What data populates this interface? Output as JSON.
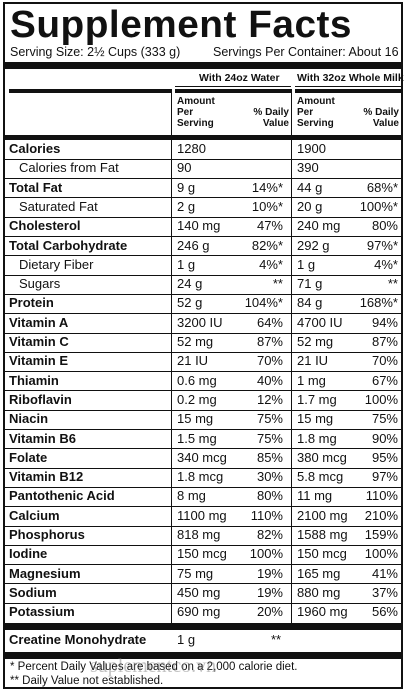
{
  "title": "Supplement Facts",
  "serving_size": "Serving Size: 2½ Cups (333 g)",
  "servings_per_container": "Servings Per Container: About 16",
  "columns": {
    "col1_header": "With 24oz Water",
    "col2_header": "With 32oz Whole Milk",
    "amount_label": "Amount Per Serving",
    "dv_label": "% Daily Value"
  },
  "rows": [
    {
      "label": "Calories",
      "indent": false,
      "a1": "1280",
      "p1": "",
      "a2": "1900",
      "p2": ""
    },
    {
      "label": "Calories from Fat",
      "indent": true,
      "a1": "90",
      "p1": "",
      "a2": "390",
      "p2": ""
    },
    {
      "label": "Total Fat",
      "indent": false,
      "a1": "9 g",
      "p1": "14%*",
      "a2": "44 g",
      "p2": "68%*"
    },
    {
      "label": "Saturated Fat",
      "indent": true,
      "a1": "2 g",
      "p1": "10%*",
      "a2": "20 g",
      "p2": "100%*"
    },
    {
      "label": "Cholesterol",
      "indent": false,
      "a1": "140 mg",
      "p1": "47%",
      "a2": "240 mg",
      "p2": "80%"
    },
    {
      "label": "Total Carbohydrate",
      "indent": false,
      "a1": "246 g",
      "p1": "82%*",
      "a2": "292 g",
      "p2": "97%*"
    },
    {
      "label": "Dietary Fiber",
      "indent": true,
      "a1": "1 g",
      "p1": "4%*",
      "a2": "1 g",
      "p2": "4%*"
    },
    {
      "label": "Sugars",
      "indent": true,
      "a1": "24 g",
      "p1": "**",
      "a2": "71 g",
      "p2": "**"
    },
    {
      "label": "Protein",
      "indent": false,
      "a1": "52 g",
      "p1": "104%*",
      "a2": "84 g",
      "p2": "168%*"
    },
    {
      "label": "Vitamin A",
      "indent": false,
      "a1": "3200 IU",
      "p1": "64%",
      "a2": "4700 IU",
      "p2": "94%"
    },
    {
      "label": "Vitamin C",
      "indent": false,
      "a1": "52 mg",
      "p1": "87%",
      "a2": "52 mg",
      "p2": "87%"
    },
    {
      "label": "Vitamin E",
      "indent": false,
      "a1": "21 IU",
      "p1": "70%",
      "a2": "21 IU",
      "p2": "70%"
    },
    {
      "label": "Thiamin",
      "indent": false,
      "a1": "0.6 mg",
      "p1": "40%",
      "a2": "1 mg",
      "p2": "67%"
    },
    {
      "label": "Riboflavin",
      "indent": false,
      "a1": "0.2 mg",
      "p1": "12%",
      "a2": "1.7 mg",
      "p2": "100%"
    },
    {
      "label": "Niacin",
      "indent": false,
      "a1": "15 mg",
      "p1": "75%",
      "a2": "15 mg",
      "p2": "75%"
    },
    {
      "label": "Vitamin B6",
      "indent": false,
      "a1": "1.5 mg",
      "p1": "75%",
      "a2": "1.8 mg",
      "p2": "90%"
    },
    {
      "label": "Folate",
      "indent": false,
      "a1": "340 mcg",
      "p1": "85%",
      "a2": "380 mcg",
      "p2": "95%"
    },
    {
      "label": "Vitamin B12",
      "indent": false,
      "a1": "1.8 mcg",
      "p1": "30%",
      "a2": "5.8 mcg",
      "p2": "97%"
    },
    {
      "label": "Pantothenic Acid",
      "indent": false,
      "a1": "8 mg",
      "p1": "80%",
      "a2": "11 mg",
      "p2": "110%"
    },
    {
      "label": "Calcium",
      "indent": false,
      "a1": "1100 mg",
      "p1": "110%",
      "a2": "2100 mg",
      "p2": "210%"
    },
    {
      "label": "Phosphorus",
      "indent": false,
      "a1": "818 mg",
      "p1": "82%",
      "a2": "1588 mg",
      "p2": "159%"
    },
    {
      "label": "Iodine",
      "indent": false,
      "a1": "150 mcg",
      "p1": "100%",
      "a2": "150 mcg",
      "p2": "100%"
    },
    {
      "label": "Magnesium",
      "indent": false,
      "a1": "75 mg",
      "p1": "19%",
      "a2": "165 mg",
      "p2": "41%"
    },
    {
      "label": "Sodium",
      "indent": false,
      "a1": "450 mg",
      "p1": "19%",
      "a2": "880 mg",
      "p2": "37%"
    },
    {
      "label": "Potassium",
      "indent": false,
      "a1": "690 mg",
      "p1": "20%",
      "a2": "1960 mg",
      "p2": "56%"
    }
  ],
  "creatine": {
    "label": "Creatine Monohydrate",
    "a1": "1 g",
    "p1": "**"
  },
  "footnotes": [
    "* Percent Daily Values are based on a 2,000 calorie diet.",
    "** Daily Value not established."
  ],
  "watermark": "suplementco.vn"
}
